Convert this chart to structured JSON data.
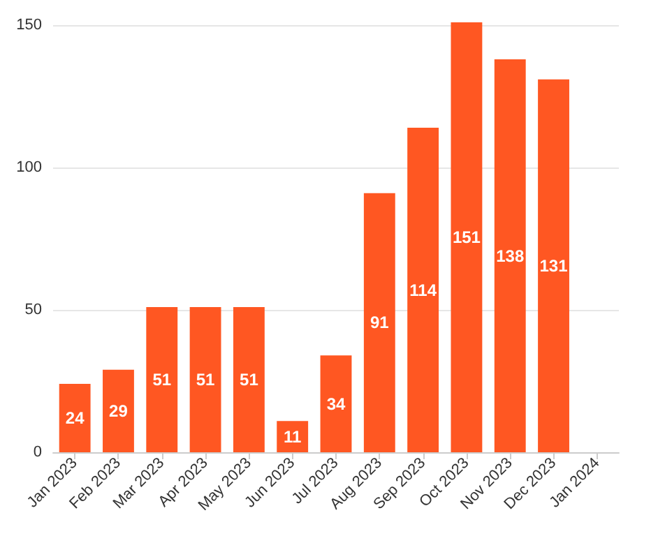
{
  "chart_data": {
    "type": "bar",
    "categories": [
      "Jan 2023",
      "Feb 2023",
      "Mar 2023",
      "Apr 2023",
      "May 2023",
      "Jun 2023",
      "Jul 2023",
      "Aug 2023",
      "Sep 2023",
      "Oct 2023",
      "Nov 2023",
      "Dec 2023",
      "Jan 2024"
    ],
    "values": [
      24,
      29,
      51,
      51,
      51,
      11,
      34,
      91,
      114,
      151,
      138,
      131,
      null
    ],
    "color": "#ff5722",
    "ylim": [
      0,
      152
    ],
    "yticks": [
      0,
      50,
      100,
      150
    ],
    "grid": "y",
    "data_labels": true
  }
}
